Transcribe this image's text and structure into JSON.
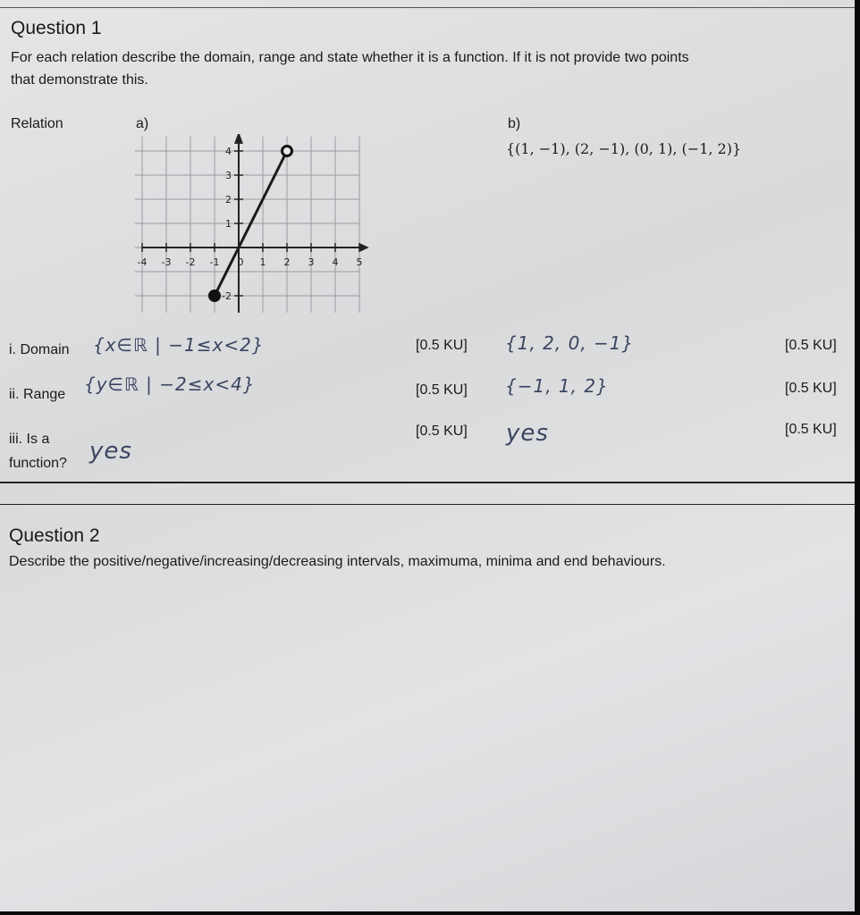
{
  "q1": {
    "title": "Question 1",
    "instruction_line1": "For each relation describe the domain, range and state whether it is a function. If it is not provide two points",
    "instruction_line2": "that demonstrate this.",
    "relation_label": "Relation",
    "part_a": "a)",
    "part_b": "b)",
    "relation_b": "{(1, −1), (2, −1), (0, 1), (−1, 2)}",
    "graph": {
      "x_ticks": [
        "-4",
        "-3",
        "-2",
        "-1",
        "0",
        "1",
        "2",
        "3",
        "4",
        "5"
      ],
      "y_ticks": [
        "4",
        "3",
        "2",
        "1",
        "-2"
      ],
      "segment": {
        "start": [
          -1,
          -2
        ],
        "end": [
          2,
          4
        ],
        "start_closed": true,
        "end_closed": false
      }
    },
    "rows": [
      {
        "label": "i. Domain",
        "answer_a": "{x∈ℝ | −1≤x<2}",
        "marks_a": "[0.5 KU]",
        "answer_b": "{1, 2, 0, −1}",
        "marks_b": "[0.5 KU]"
      },
      {
        "label": "ii. Range",
        "answer_a": "{y∈ℝ | −2≤x<4}",
        "marks_a": "[0.5 KU]",
        "answer_b": "{−1, 1, 2}",
        "marks_b": "[0.5 KU]"
      },
      {
        "label_line1": "iii. Is a",
        "label_line2": "function?",
        "answer_a": "yes",
        "marks_a": "[0.5 KU]",
        "answer_b": "yes",
        "marks_b": "[0.5 KU]"
      }
    ]
  },
  "q2": {
    "title": "Question 2",
    "instruction": "Describe the positive/negative/increasing/decreasing intervals, maximuma, minima and end behaviours."
  }
}
